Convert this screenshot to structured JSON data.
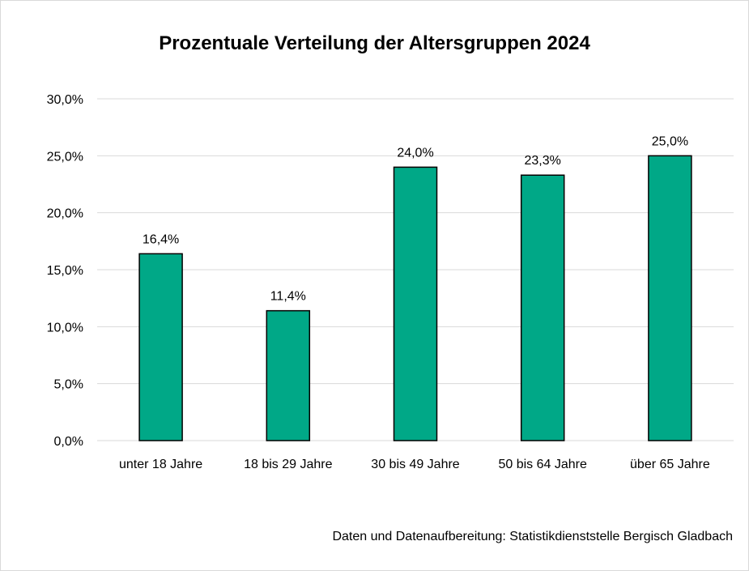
{
  "chart_data": {
    "type": "bar",
    "title": "Prozentuale Verteilung der Altersgruppen 2024",
    "categories": [
      "unter 18 Jahre",
      "18 bis 29 Jahre",
      "30 bis 49 Jahre",
      "50 bis 64 Jahre",
      "über 65 Jahre"
    ],
    "values": [
      16.4,
      11.4,
      24.0,
      23.3,
      25.0
    ],
    "data_labels": [
      "16,4%",
      "11,4%",
      "24,0%",
      "23,3%",
      "25,0%"
    ],
    "ylim": [
      0,
      30
    ],
    "y_ticks": [
      0,
      5,
      10,
      15,
      20,
      25,
      30
    ],
    "y_tick_labels": [
      "0,0%",
      "5,0%",
      "10,0%",
      "15,0%",
      "20,0%",
      "25,0%",
      "30,0%"
    ],
    "xlabel": "",
    "ylabel": "",
    "grid": true,
    "legend": "none",
    "colors": {
      "bar_fill": "#00a887",
      "bar_stroke": "#000000",
      "grid": "#d9d9d9"
    }
  },
  "footer": {
    "source": "Daten und Datenaufbereitung: Statistikdienststelle Bergisch Gladbach"
  }
}
